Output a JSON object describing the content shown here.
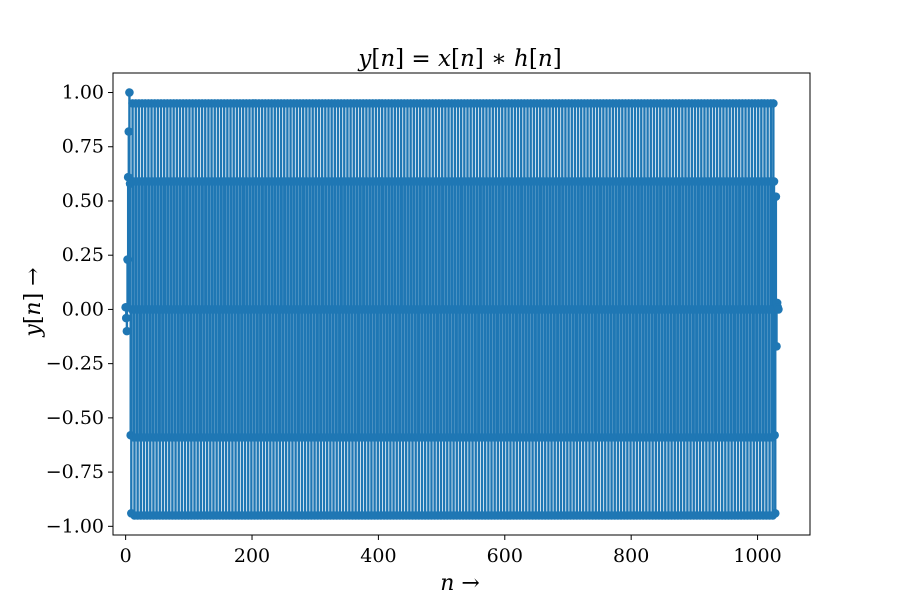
{
  "chart_data": {
    "type": "stem",
    "title": "y[n] = x[n] ∗ h[n]",
    "xlabel": "n →",
    "ylabel": "y[n] →",
    "xlim": [
      -20,
      1083
    ],
    "ylim": [
      -1.04,
      1.09
    ],
    "x_ticks": [
      {
        "value": 0,
        "label": "0"
      },
      {
        "value": 200,
        "label": "200"
      },
      {
        "value": 400,
        "label": "400"
      },
      {
        "value": 600,
        "label": "600"
      },
      {
        "value": 800,
        "label": "800"
      },
      {
        "value": 1000,
        "label": "1000"
      }
    ],
    "y_ticks": [
      {
        "value": 1.0,
        "label": "1.00"
      },
      {
        "value": 0.75,
        "label": "0.75"
      },
      {
        "value": 0.5,
        "label": "0.50"
      },
      {
        "value": 0.25,
        "label": "0.25"
      },
      {
        "value": 0.0,
        "label": "0.00"
      },
      {
        "value": -0.25,
        "label": "−0.25"
      },
      {
        "value": -0.5,
        "label": "−0.50"
      },
      {
        "value": -0.75,
        "label": "−0.75"
      },
      {
        "value": -1.0,
        "label": "−1.00"
      }
    ],
    "series": [
      {
        "color": "#1f77b4",
        "baseline_color": "#d62728",
        "n_range": [
          0,
          1033
        ],
        "start_values": [
          0.01,
          -0.04,
          -0.1,
          0.23,
          0.61,
          0.82,
          1.0,
          0.58,
          -0.58,
          -0.94
        ],
        "periodic_pattern": [
          0.0,
          0.95,
          0.59,
          -0.59,
          -0.95
        ],
        "end_values": [
          0.95,
          0.59,
          -0.58,
          -0.94,
          0.52,
          -0.17,
          0.03,
          0.01,
          0.0
        ]
      }
    ],
    "grid": false,
    "legend": "none"
  }
}
